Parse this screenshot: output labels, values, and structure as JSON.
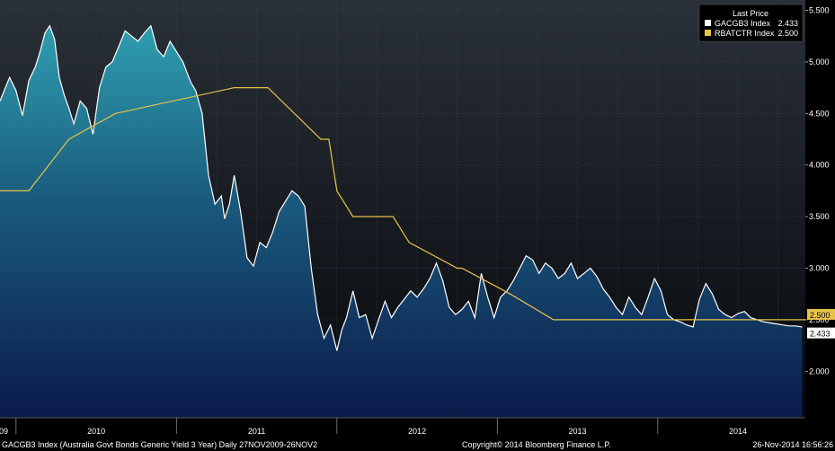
{
  "chart_data": {
    "type": "line",
    "legend": {
      "title": "Last Price",
      "placement": "top-right",
      "entries": [
        {
          "label": "GACGB3 Index",
          "value": "2.433",
          "color": "#ffffff"
        },
        {
          "label": "RBATCTR Index",
          "value": "2.500",
          "color": "#e8c34a"
        }
      ]
    },
    "y_ticks": [
      "2.000",
      "2.500",
      "3.000",
      "3.500",
      "4.000",
      "4.500",
      "5.000",
      "5.500"
    ],
    "ylim": [
      1.55,
      5.6
    ],
    "x_year_labels": [
      "09",
      "2010",
      "2011",
      "2012",
      "2013",
      "2014"
    ],
    "xlim": [
      2009.9,
      2014.92
    ],
    "grid": true,
    "series": [
      {
        "name": "GACGB3 Index",
        "color": "#ffffff",
        "fill": "gradient-teal-navy",
        "x": [
          2009.9,
          2009.96,
          2010.0,
          2010.04,
          2010.08,
          2010.12,
          2010.15,
          2010.18,
          2010.21,
          2010.24,
          2010.27,
          2010.3,
          2010.33,
          2010.36,
          2010.4,
          2010.44,
          2010.48,
          2010.52,
          2010.56,
          2010.6,
          2010.64,
          2010.68,
          2010.72,
          2010.76,
          2010.8,
          2010.84,
          2010.88,
          2010.92,
          2010.96,
          2011.0,
          2011.04,
          2011.07,
          2011.09,
          2011.12,
          2011.16,
          2011.2,
          2011.24,
          2011.28,
          2011.3,
          2011.33,
          2011.36,
          2011.4,
          2011.44,
          2011.48,
          2011.52,
          2011.56,
          2011.6,
          2011.64,
          2011.68,
          2011.72,
          2011.76,
          2011.8,
          2011.84,
          2011.88,
          2011.92,
          2011.96,
          2012.0,
          2012.03,
          2012.06,
          2012.1,
          2012.14,
          2012.18,
          2012.22,
          2012.26,
          2012.3,
          2012.34,
          2012.38,
          2012.42,
          2012.46,
          2012.5,
          2012.54,
          2012.58,
          2012.62,
          2012.66,
          2012.7,
          2012.74,
          2012.78,
          2012.82,
          2012.86,
          2012.9,
          2012.94,
          2012.98,
          2013.02,
          2013.06,
          2013.1,
          2013.14,
          2013.18,
          2013.22,
          2013.26,
          2013.3,
          2013.34,
          2013.38,
          2013.42,
          2013.46,
          2013.5,
          2013.54,
          2013.58,
          2013.62,
          2013.66,
          2013.7,
          2013.74,
          2013.78,
          2013.82,
          2013.86,
          2013.9,
          2013.94,
          2013.98,
          2014.02,
          2014.06,
          2014.1,
          2014.14,
          2014.18,
          2014.22,
          2014.26,
          2014.3,
          2014.34,
          2014.38,
          2014.42,
          2014.46,
          2014.5,
          2014.54,
          2014.58,
          2014.62,
          2014.66,
          2014.7,
          2014.74,
          2014.78,
          2014.82,
          2014.86,
          2014.9
        ],
        "y": [
          4.62,
          4.85,
          4.72,
          4.48,
          4.82,
          4.95,
          5.1,
          5.28,
          5.35,
          5.22,
          4.85,
          4.68,
          4.55,
          4.4,
          4.62,
          4.55,
          4.3,
          4.75,
          4.95,
          5.0,
          5.15,
          5.3,
          5.25,
          5.2,
          5.28,
          5.35,
          5.12,
          5.05,
          5.2,
          5.1,
          5.0,
          4.88,
          4.8,
          4.72,
          4.5,
          3.9,
          3.62,
          3.7,
          3.48,
          3.62,
          3.9,
          3.55,
          3.1,
          3.02,
          3.25,
          3.2,
          3.35,
          3.55,
          3.65,
          3.75,
          3.7,
          3.6,
          3.0,
          2.55,
          2.32,
          2.45,
          2.2,
          2.4,
          2.52,
          2.78,
          2.52,
          2.55,
          2.32,
          2.5,
          2.68,
          2.52,
          2.62,
          2.7,
          2.78,
          2.72,
          2.8,
          2.9,
          3.05,
          2.88,
          2.62,
          2.55,
          2.6,
          2.68,
          2.52,
          2.95,
          2.72,
          2.52,
          2.72,
          2.78,
          2.88,
          3.0,
          3.12,
          3.08,
          2.95,
          3.05,
          3.0,
          2.9,
          2.95,
          3.05,
          2.9,
          2.95,
          3.0,
          2.92,
          2.8,
          2.72,
          2.62,
          2.55,
          2.72,
          2.62,
          2.55,
          2.72,
          2.9,
          2.78,
          2.55,
          2.5,
          2.48,
          2.45,
          2.43,
          2.7,
          2.85,
          2.75,
          2.6,
          2.55,
          2.52,
          2.56,
          2.58,
          2.52,
          2.5,
          2.48,
          2.47,
          2.46,
          2.45,
          2.44,
          2.44,
          2.43
        ]
      },
      {
        "name": "RBATCTR Index",
        "color": "#e8c34a",
        "step": true,
        "x": [
          2009.9,
          2010.08,
          2010.33,
          2010.62,
          2011.36,
          2011.57,
          2011.9,
          2011.95,
          2012.0,
          2012.1,
          2012.35,
          2012.45,
          2012.75,
          2012.78,
          2013.08,
          2013.35,
          2014.92
        ],
        "y": [
          3.75,
          3.75,
          4.25,
          4.5,
          4.75,
          4.75,
          4.25,
          4.25,
          3.75,
          3.5,
          3.5,
          3.25,
          3.0,
          3.0,
          2.75,
          2.5,
          2.5
        ]
      }
    ],
    "last_value_labels": [
      {
        "series": "RBATCTR Index",
        "value": "2.500",
        "color": "#e8c34a"
      },
      {
        "series": "GACGB3 Index",
        "value": "2.433",
        "color": "#ffffff"
      }
    ]
  },
  "footer": {
    "left_text": "GACGB3 Index (Australia Govt Bonds Generic Yield 3 Year)  Daily 27NOV2009-26NOV2",
    "copyright": "Copyright© 2014 Bloomberg Finance L.P.",
    "timestamp": "26-Nov-2014 16:56:26"
  }
}
